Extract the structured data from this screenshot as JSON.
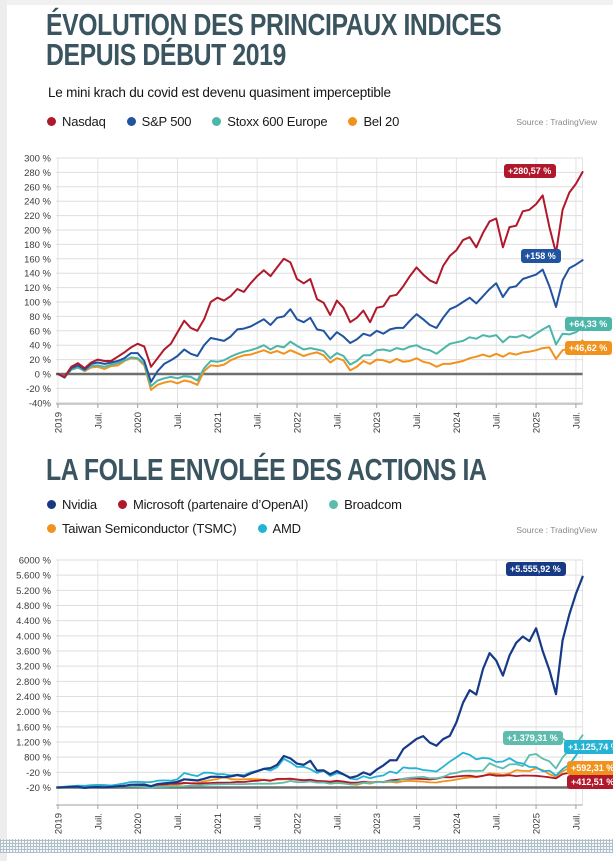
{
  "chart_data": [
    {
      "type": "line",
      "title": "ÉVOLUTION DES PRINCIPAUX INDICES DEPUIS DÉBUT 2019",
      "title_lines": [
        "ÉVOLUTION DES PRINCIPAUX INDICES",
        "DEPUIS DÉBUT 2019"
      ],
      "subtitle": "Le mini krach du covid est devenu quasiment imperceptible",
      "source": "Source : TradingView",
      "x_ticks": [
        "2019",
        "Juil.",
        "2020",
        "Juil.",
        "2021",
        "Juil.",
        "2022",
        "Juil.",
        "2023",
        "Juil.",
        "2024",
        "Juil.",
        "2025",
        "Juil."
      ],
      "x_tick_months": [
        0,
        6,
        12,
        18,
        24,
        30,
        36,
        42,
        48,
        54,
        60,
        66,
        72,
        78
      ],
      "y_ticks": [
        "300 %",
        "280 %",
        "260 %",
        "240 %",
        "220 %",
        "200 %",
        "180 %",
        "160 %",
        "140 %",
        "120 %",
        "100 %",
        "80 %",
        "60 %",
        "40 %",
        "20 %",
        "0 %",
        "-20 %",
        "-40%"
      ],
      "ylim": [
        -40,
        300
      ],
      "grid": true,
      "x_unit": "months since Jan 2019",
      "series": [
        {
          "name": "Nasdaq",
          "color": "#b0192b",
          "z": 4,
          "width": 2,
          "end_label": "+280,57 %",
          "final_pct": 280.57,
          "values": [
            0,
            -4,
            10,
            15,
            8,
            16,
            20,
            18,
            18,
            24,
            30,
            37,
            42,
            38,
            10,
            22,
            34,
            42,
            58,
            74,
            64,
            60,
            76,
            100,
            106,
            102,
            108,
            118,
            114,
            126,
            136,
            144,
            136,
            148,
            160,
            155,
            132,
            126,
            132,
            104,
            99,
            82,
            102,
            92,
            72,
            78,
            88,
            72,
            92,
            94,
            108,
            110,
            122,
            136,
            148,
            138,
            130,
            126,
            150,
            164,
            172,
            186,
            190,
            176,
            196,
            212,
            216,
            176,
            204,
            206,
            226,
            228,
            236,
            248,
            204,
            168,
            228,
            252,
            264,
            280.57
          ]
        },
        {
          "name": "S&P 500",
          "color": "#2153a1",
          "z": 3,
          "width": 2,
          "end_label": "+158 %",
          "final_pct": 158,
          "values": [
            0,
            -5,
            8,
            12,
            6,
            14,
            16,
            14,
            16,
            18,
            22,
            29,
            29,
            18,
            -11,
            4,
            14,
            19,
            25,
            34,
            28,
            25,
            40,
            50,
            48,
            46,
            52,
            62,
            63,
            66,
            71,
            76,
            68,
            78,
            80,
            90,
            76,
            72,
            78,
            62,
            60,
            48,
            58,
            52,
            43,
            48,
            56,
            53,
            60,
            56,
            62,
            64,
            64,
            74,
            83,
            76,
            68,
            64,
            78,
            90,
            94,
            100,
            106,
            98,
            108,
            118,
            126,
            107,
            120,
            122,
            132,
            135,
            138,
            145,
            122,
            93,
            130,
            147,
            152,
            158
          ]
        },
        {
          "name": "Stoxx 600 Europe",
          "color": "#4cb6a9",
          "z": 2,
          "width": 2,
          "end_label": "+64,33 %",
          "final_pct": 64.33,
          "values": [
            0,
            -4,
            6,
            9,
            5,
            11,
            12,
            10,
            13,
            15,
            19,
            23,
            22,
            14,
            -17,
            -9,
            -6,
            -4,
            -6,
            -3,
            -4,
            -9,
            8,
            18,
            17,
            19,
            24,
            28,
            31,
            33,
            36,
            40,
            34,
            39,
            37,
            45,
            39,
            34,
            36,
            34,
            32,
            22,
            29,
            25,
            13,
            18,
            26,
            26,
            33,
            34,
            32,
            36,
            34,
            38,
            40,
            35,
            33,
            28,
            35,
            42,
            44,
            46,
            51,
            49,
            54,
            52,
            54,
            44,
            52,
            51,
            54,
            50,
            56,
            62,
            67,
            41,
            56,
            55,
            58,
            64.33
          ]
        },
        {
          "name": "Bel 20",
          "color": "#f2921e",
          "z": 1,
          "width": 2,
          "end_label": "+46,62 %",
          "final_pct": 46.62,
          "values": [
            0,
            -4,
            6,
            9,
            4,
            9,
            10,
            7,
            11,
            12,
            18,
            22,
            21,
            12,
            -22,
            -15,
            -12,
            -10,
            -13,
            -9,
            -11,
            -15,
            4,
            12,
            11,
            13,
            19,
            23,
            26,
            27,
            30,
            33,
            29,
            32,
            28,
            33,
            29,
            25,
            28,
            30,
            26,
            16,
            22,
            19,
            5,
            10,
            18,
            14,
            20,
            19,
            16,
            21,
            17,
            18,
            22,
            17,
            15,
            10,
            14,
            14,
            16,
            18,
            22,
            24,
            27,
            24,
            28,
            24,
            29,
            27,
            30,
            31,
            33,
            36,
            37,
            21,
            33,
            35,
            38,
            46.62
          ]
        }
      ]
    },
    {
      "type": "line",
      "title": "LA FOLLE ENVOLÉE DES ACTIONS IA",
      "title_lines": [
        "LA FOLLE ENVOLÉE DES ACTIONS IA"
      ],
      "source": "Source : TradingView",
      "x_ticks": [
        "2019",
        "Juil.",
        "2020",
        "Juil.",
        "2021",
        "Juil.",
        "2022",
        "Juil.",
        "2023",
        "Juil.",
        "2024",
        "Juil.",
        "2025",
        "Juil."
      ],
      "x_tick_months": [
        0,
        6,
        12,
        18,
        24,
        30,
        36,
        42,
        48,
        54,
        60,
        66,
        72,
        78
      ],
      "y_ticks": [
        "6000 %",
        "5.600 %",
        "5.200 %",
        "4.800 %",
        "4.400 %",
        "4.000 %",
        "3.600 %",
        "3.200 %",
        "2.800 %",
        "2.400 %",
        "2.000 %",
        "1.600 %",
        "1.200 %",
        "800 %",
        "-20 %",
        "-20 %"
      ],
      "ylim": [
        0,
        6000
      ],
      "grid": true,
      "x_unit": "months since Jan 2019",
      "series": [
        {
          "name": "Nvidia",
          "color": "#173a87",
          "z": 5,
          "width": 2.2,
          "end_label": "+5.555,92 %",
          "final_pct": 5555.92,
          "values": [
            0,
            8,
            18,
            20,
            -10,
            8,
            10,
            4,
            15,
            32,
            43,
            74,
            76,
            80,
            33,
            90,
            110,
            124,
            150,
            215,
            200,
            185,
            230,
            283,
            285,
            270,
            294,
            330,
            290,
            370,
            430,
            490,
            512,
            600,
            830,
            767,
            630,
            600,
            705,
            448,
            453,
            347,
            436,
            346,
            258,
            298,
            398,
            331,
            472,
            584,
            719,
            718,
            1015,
            1148,
            1283,
            1355,
            1183,
            1103,
            1276,
            1361,
            1717,
            2233,
            2565,
            2449,
            3125,
            3544,
            3350,
            2950,
            3480,
            3816,
            3983,
            3861,
            4200,
            3600,
            3097,
            2460,
            3883,
            4560,
            5105,
            5555.92
          ]
        },
        {
          "name": "Microsoft (partenaire d’OpenAI)",
          "color": "#b0192b",
          "z": 2,
          "width": 1.8,
          "end_label": "+412,51 %",
          "final_pct": 412.51,
          "values": [
            0,
            10,
            16,
            28,
            22,
            32,
            34,
            36,
            37,
            41,
            49,
            55,
            67,
            60,
            33,
            76,
            80,
            100,
            102,
            122,
            107,
            99,
            111,
            119,
            128,
            129,
            132,
            148,
            146,
            167,
            180,
            197,
            177,
            226,
            226,
            231,
            206,
            193,
            203,
            173,
            168,
            153,
            176,
            157,
            129,
            129,
            151,
            136,
            144,
            145,
            187,
            202,
            223,
            235,
            231,
            223,
            211,
            233,
            273,
            270,
            291,
            307,
            314,
            283,
            309,
            340,
            312,
            310,
            324,
            300,
            316,
            315,
            308,
            290,
            269,
            239,
            353,
            389,
            425,
            412.51
          ]
        },
        {
          "name": "Broadcom",
          "color": "#5ebcad",
          "z": 3,
          "width": 1.8,
          "end_label": "+1.379,31 %",
          "final_pct": 1379.31,
          "values": [
            0,
            11,
            24,
            31,
            4,
            18,
            19,
            16,
            14,
            20,
            29,
            30,
            25,
            12,
            -2,
            11,
            19,
            30,
            31,
            36,
            50,
            43,
            65,
            80,
            85,
            87,
            91,
            88,
            90,
            96,
            100,
            104,
            99,
            110,
            128,
            174,
            141,
            142,
            159,
            128,
            133,
            100,
            120,
            105,
            83,
            93,
            126,
            130,
            140,
            145,
            164,
            157,
            232,
            257,
            270,
            280,
            242,
            246,
            280,
            359,
            386,
            435,
            443,
            435,
            447,
            641,
            560,
            500,
            608,
            616,
            568,
            855,
            883,
            760,
            690,
            500,
            795,
            986,
            1126,
            1379.31
          ]
        },
        {
          "name": "Taiwan Semiconductor (TSMC)",
          "color": "#f2921e",
          "z": 1,
          "width": 1.8,
          "end_label": "+592,31 %",
          "final_pct": 592.31,
          "values": [
            0,
            4,
            10,
            20,
            12,
            6,
            17,
            15,
            26,
            31,
            41,
            57,
            50,
            45,
            17,
            29,
            37,
            53,
            72,
            107,
            120,
            119,
            162,
            195,
            225,
            279,
            220,
            212,
            215,
            225,
            215,
            202,
            189,
            208,
            217,
            225,
            215,
            185,
            182,
            152,
            147,
            121,
            139,
            136,
            85,
            68,
            121,
            102,
            150,
            136,
            152,
            128,
            166,
            173,
            164,
            155,
            135,
            133,
            161,
            182,
            211,
            244,
            268,
            271,
            305,
            371,
            360,
            334,
            370,
            456,
            437,
            434,
            510,
            460,
            350,
            282,
            426,
            515,
            564,
            592.31
          ]
        },
        {
          "name": "AMD",
          "color": "#24b3d4",
          "z": 4,
          "width": 1.8,
          "end_label": "+1.125,74 %",
          "final_pct": 1125.74,
          "values": [
            0,
            22,
            36,
            47,
            46,
            62,
            68,
            66,
            54,
            80,
            108,
            144,
            150,
            143,
            142,
            180,
            186,
            180,
            220,
            383,
            336,
            300,
            392,
            388,
            354,
            350,
            318,
            334,
            324,
            400,
            440,
            490,
            447,
            536,
            757,
            665,
            544,
            549,
            482,
            386,
            441,
            307,
            376,
            352,
            237,
            211,
            297,
            245,
            291,
            318,
            421,
            375,
            529,
            506,
            508,
            462,
            447,
            423,
            545,
            684,
            793,
            918,
            860,
            742,
            780,
            763,
            672,
            687,
            772,
            666,
            633,
            543,
            539,
            430,
            447,
            316,
            489,
            604,
            840,
            1125.74
          ]
        }
      ]
    }
  ]
}
